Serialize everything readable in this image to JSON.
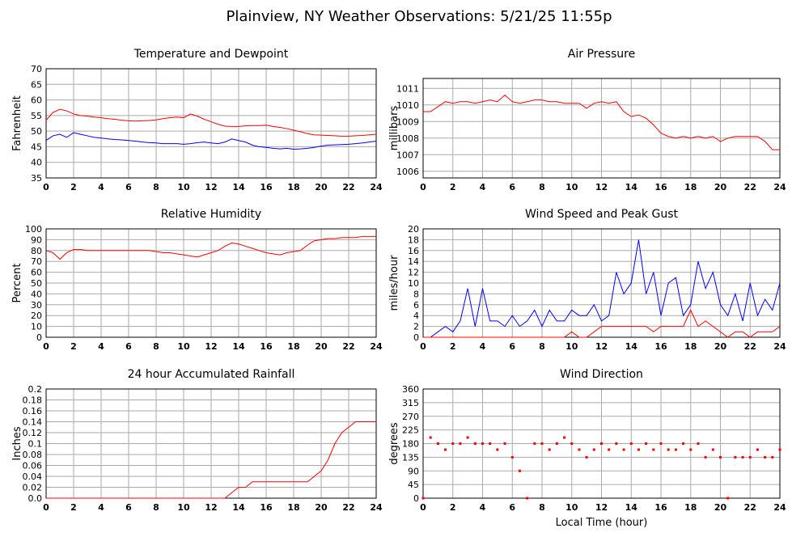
{
  "title": "Plainview, NY Weather Observations: 5/21/25 11:55p",
  "chart_data": [
    {
      "type": "line",
      "title": "Temperature and Dewpoint",
      "ylabel": "Fahrenheit",
      "grid": true,
      "x": [
        0,
        0.5,
        1,
        1.5,
        2,
        2.5,
        3,
        3.5,
        4,
        4.5,
        5,
        5.5,
        6,
        6.5,
        7,
        7.5,
        8,
        8.5,
        9,
        9.5,
        10,
        10.5,
        11,
        11.5,
        12,
        12.5,
        13,
        13.5,
        14,
        14.5,
        15,
        15.5,
        16,
        16.5,
        17,
        17.5,
        18,
        18.5,
        19,
        19.5,
        20,
        20.5,
        21,
        21.5,
        22,
        22.5,
        23,
        23.5,
        24
      ],
      "xlim": [
        0,
        24
      ],
      "xticks": [
        0,
        2,
        4,
        6,
        8,
        10,
        12,
        14,
        16,
        18,
        20,
        22,
        24
      ],
      "ylim": [
        35,
        70
      ],
      "yticks": [
        35,
        40,
        45,
        50,
        55,
        60,
        65,
        70
      ],
      "series": [
        {
          "color": "#ff0000",
          "values": [
            53.5,
            56,
            57,
            56.5,
            55.5,
            55,
            54.8,
            54.5,
            54.3,
            54,
            53.8,
            53.5,
            53.3,
            53.2,
            53.3,
            53.4,
            53.6,
            54,
            54.3,
            54.5,
            54.3,
            55.5,
            54.8,
            53.8,
            53,
            52.2,
            51.6,
            51.5,
            51.5,
            51.7,
            51.8,
            51.8,
            51.9,
            51.5,
            51.2,
            50.8,
            50.3,
            49.8,
            49.2,
            48.8,
            48.7,
            48.6,
            48.5,
            48.4,
            48.4,
            48.5,
            48.6,
            48.8,
            49
          ]
        },
        {
          "color": "#0000ff",
          "values": [
            47,
            48.5,
            49,
            48,
            49.5,
            49,
            48.5,
            48,
            47.8,
            47.5,
            47.3,
            47.2,
            47,
            46.8,
            46.5,
            46.3,
            46.2,
            46,
            46,
            46,
            45.8,
            46,
            46.3,
            46.5,
            46.2,
            46,
            46.5,
            47.5,
            47,
            46.5,
            45.5,
            45,
            44.8,
            44.5,
            44.3,
            44.5,
            44.2,
            44.3,
            44.5,
            44.8,
            45.2,
            45.5,
            45.6,
            45.7,
            45.8,
            46,
            46.2,
            46.5,
            46.8
          ]
        }
      ]
    },
    {
      "type": "line",
      "title": "Air Pressure",
      "ylabel": "millibars",
      "grid": true,
      "x": [
        0,
        0.5,
        1,
        1.5,
        2,
        2.5,
        3,
        3.5,
        4,
        4.5,
        5,
        5.5,
        6,
        6.5,
        7,
        7.5,
        8,
        8.5,
        9,
        9.5,
        10,
        10.5,
        11,
        11.5,
        12,
        12.5,
        13,
        13.5,
        14,
        14.5,
        15,
        15.5,
        16,
        16.5,
        17,
        17.5,
        18,
        18.5,
        19,
        19.5,
        20,
        20.5,
        21,
        21.5,
        22,
        22.5,
        23,
        23.5,
        24
      ],
      "xlim": [
        0,
        24
      ],
      "xticks": [
        0,
        2,
        4,
        6,
        8,
        10,
        12,
        14,
        16,
        18,
        20,
        22,
        24
      ],
      "ylim": [
        1005.6,
        1011.6
      ],
      "yticks": [
        1006,
        1007,
        1008,
        1009,
        1010,
        1011
      ],
      "series": [
        {
          "color": "#ff0000",
          "values": [
            1009.6,
            1009.6,
            1009.9,
            1010.2,
            1010.1,
            1010.2,
            1010.2,
            1010.1,
            1010.2,
            1010.3,
            1010.2,
            1010.6,
            1010.2,
            1010.1,
            1010.2,
            1010.3,
            1010.3,
            1010.2,
            1010.2,
            1010.1,
            1010.1,
            1010.1,
            1009.8,
            1010.1,
            1010.2,
            1010.1,
            1010.2,
            1009.6,
            1009.3,
            1009.4,
            1009.2,
            1008.8,
            1008.3,
            1008.1,
            1008.0,
            1008.1,
            1008.0,
            1008.1,
            1008.0,
            1008.1,
            1007.8,
            1008.0,
            1008.1,
            1008.1,
            1008.1,
            1008.1,
            1007.8,
            1007.3,
            1007.3
          ]
        }
      ]
    },
    {
      "type": "line",
      "title": "Relative Humidity",
      "ylabel": "Percent",
      "grid": true,
      "x": [
        0,
        0.5,
        1,
        1.5,
        2,
        2.5,
        3,
        3.5,
        4,
        4.5,
        5,
        5.5,
        6,
        6.5,
        7,
        7.5,
        8,
        8.5,
        9,
        9.5,
        10,
        10.5,
        11,
        11.5,
        12,
        12.5,
        13,
        13.5,
        14,
        14.5,
        15,
        15.5,
        16,
        16.5,
        17,
        17.5,
        18,
        18.5,
        19,
        19.5,
        20,
        20.5,
        21,
        21.5,
        22,
        22.5,
        23,
        23.5,
        24
      ],
      "xlim": [
        0,
        24
      ],
      "xticks": [
        0,
        2,
        4,
        6,
        8,
        10,
        12,
        14,
        16,
        18,
        20,
        22,
        24
      ],
      "ylim": [
        0,
        100
      ],
      "yticks": [
        0,
        10,
        20,
        30,
        40,
        50,
        60,
        70,
        80,
        90,
        100
      ],
      "series": [
        {
          "color": "#ff0000",
          "values": [
            80,
            78,
            72,
            78,
            81,
            81,
            80,
            80,
            80,
            80,
            80,
            80,
            80,
            80,
            80,
            80,
            79,
            78,
            78,
            77,
            76,
            75,
            74,
            76,
            78,
            80,
            84,
            87,
            86,
            84,
            82,
            80,
            78,
            77,
            76,
            78,
            79,
            80,
            85,
            89,
            90,
            91,
            91,
            92,
            92,
            92,
            93,
            93,
            93
          ]
        }
      ]
    },
    {
      "type": "line",
      "title": "Wind Speed and Peak Gust",
      "ylabel": "miles/hour",
      "grid": true,
      "x": [
        0,
        0.5,
        1,
        1.5,
        2,
        2.5,
        3,
        3.5,
        4,
        4.5,
        5,
        5.5,
        6,
        6.5,
        7,
        7.5,
        8,
        8.5,
        9,
        9.5,
        10,
        10.5,
        11,
        11.5,
        12,
        12.5,
        13,
        13.5,
        14,
        14.5,
        15,
        15.5,
        16,
        16.5,
        17,
        17.5,
        18,
        18.5,
        19,
        19.5,
        20,
        20.5,
        21,
        21.5,
        22,
        22.5,
        23,
        23.5,
        24
      ],
      "xlim": [
        0,
        24
      ],
      "xticks": [
        0,
        2,
        4,
        6,
        8,
        10,
        12,
        14,
        16,
        18,
        20,
        22,
        24
      ],
      "ylim": [
        0,
        20
      ],
      "yticks": [
        0,
        2,
        4,
        6,
        8,
        10,
        12,
        14,
        16,
        18,
        20
      ],
      "series": [
        {
          "color": "#0000ff",
          "values": [
            0,
            0,
            1,
            2,
            1,
            3,
            9,
            2,
            9,
            3,
            3,
            2,
            4,
            2,
            3,
            5,
            2,
            5,
            3,
            3,
            5,
            4,
            4,
            6,
            3,
            4,
            12,
            8,
            10,
            18,
            8,
            12,
            4,
            10,
            11,
            4,
            6,
            14,
            9,
            12,
            6,
            4,
            8,
            3,
            10,
            4,
            7,
            5,
            10
          ]
        },
        {
          "color": "#ff0000",
          "values": [
            0,
            0,
            0,
            0,
            0,
            0,
            0,
            0,
            0,
            0,
            0,
            0,
            0,
            0,
            0,
            0,
            0,
            0,
            0,
            0,
            1,
            0,
            0,
            1,
            2,
            2,
            2,
            2,
            2,
            2,
            2,
            1,
            2,
            2,
            2,
            2,
            5,
            2,
            3,
            2,
            1,
            0,
            1,
            1,
            0,
            1,
            1,
            1,
            2
          ]
        }
      ]
    },
    {
      "type": "line",
      "title": "24 hour Accumulated Rainfall",
      "ylabel": "Inches",
      "grid": true,
      "x": [
        0,
        0.5,
        1,
        1.5,
        2,
        2.5,
        3,
        3.5,
        4,
        4.5,
        5,
        5.5,
        6,
        6.5,
        7,
        7.5,
        8,
        8.5,
        9,
        9.5,
        10,
        10.5,
        11,
        11.5,
        12,
        12.5,
        13,
        13.5,
        14,
        14.5,
        15,
        15.5,
        16,
        16.5,
        17,
        17.5,
        18,
        18.5,
        19,
        19.5,
        20,
        20.5,
        21,
        21.5,
        22,
        22.5,
        23,
        23.5,
        24
      ],
      "xlim": [
        0,
        24
      ],
      "xticks": [
        0,
        2,
        4,
        6,
        8,
        10,
        12,
        14,
        16,
        18,
        20,
        22,
        24
      ],
      "ylim": [
        0,
        0.2
      ],
      "yticks": [
        {
          "value": 0,
          "label": "0.0"
        },
        0.02,
        0.04,
        0.06,
        0.08,
        0.1,
        0.12,
        0.14,
        0.16,
        0.18,
        0.2
      ],
      "series": [
        {
          "color": "#ff0000",
          "values": [
            0,
            0,
            0,
            0,
            0,
            0,
            0,
            0,
            0,
            0,
            0,
            0,
            0,
            0,
            0,
            0,
            0,
            0,
            0,
            0,
            0,
            0,
            0,
            0,
            0,
            0,
            0,
            0.01,
            0.02,
            0.02,
            0.03,
            0.03,
            0.03,
            0.03,
            0.03,
            0.03,
            0.03,
            0.03,
            0.03,
            0.04,
            0.05,
            0.07,
            0.1,
            0.12,
            0.13,
            0.14,
            0.14,
            0.14,
            0.14
          ]
        }
      ]
    },
    {
      "type": "scatter",
      "title": "Wind Direction",
      "ylabel": "degrees",
      "xlabel": "Local Time (hour)",
      "grid": true,
      "x": [
        0,
        0.5,
        1,
        1.5,
        2,
        2.5,
        3,
        3.5,
        4,
        4.5,
        5,
        5.5,
        6,
        6.5,
        7,
        7.5,
        8,
        8.5,
        9,
        9.5,
        10,
        10.5,
        11,
        11.5,
        12,
        12.5,
        13,
        13.5,
        14,
        14.5,
        15,
        15.5,
        16,
        16.5,
        17,
        17.5,
        18,
        18.5,
        19,
        19.5,
        20,
        20.5,
        21,
        21.5,
        22,
        22.5,
        23,
        23.5,
        24
      ],
      "xlim": [
        0,
        24
      ],
      "xticks": [
        0,
        2,
        4,
        6,
        8,
        10,
        12,
        14,
        16,
        18,
        20,
        22,
        24
      ],
      "ylim": [
        0,
        360
      ],
      "yticks": [
        0,
        45,
        90,
        135,
        180,
        225,
        270,
        315,
        360
      ],
      "series": [
        {
          "color": "#ff0000",
          "values": [
            0,
            200,
            180,
            160,
            180,
            180,
            200,
            180,
            180,
            180,
            160,
            180,
            135,
            90,
            0,
            180,
            180,
            160,
            180,
            200,
            180,
            160,
            135,
            160,
            180,
            160,
            180,
            160,
            180,
            160,
            180,
            160,
            180,
            160,
            160,
            180,
            160,
            180,
            135,
            160,
            135,
            0,
            135,
            135,
            135,
            160,
            135,
            135,
            160
          ]
        }
      ]
    }
  ]
}
